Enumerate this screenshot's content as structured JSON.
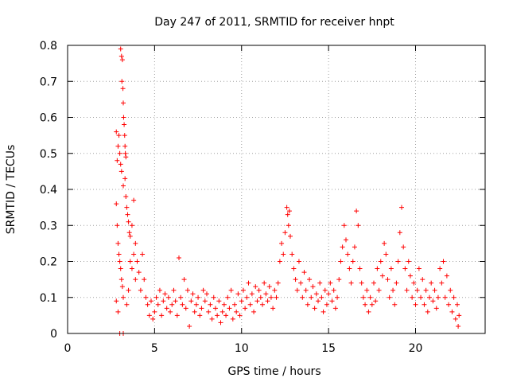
{
  "chart_data": {
    "type": "scatter",
    "title": "Day 247 of 2011, SRMTID for receiver hnpt",
    "xlabel": "GPS time / hours",
    "ylabel": "SRMTID / TECUs",
    "xlim": [
      0,
      24
    ],
    "ylim": [
      0,
      0.8
    ],
    "x_ticks": [
      0,
      5,
      10,
      15,
      20
    ],
    "x_tick_labels": [
      "0",
      "5",
      "10",
      "15",
      "20"
    ],
    "y_ticks": [
      0,
      0.1,
      0.2,
      0.3,
      0.4,
      0.5,
      0.6,
      0.7,
      0.8
    ],
    "y_tick_labels": [
      "0",
      "0.1",
      "0.2",
      "0.3",
      "0.4",
      "0.5",
      "0.6",
      "0.7",
      "0.8"
    ],
    "grid": true,
    "marker": "+",
    "color": "#ff0000",
    "series": [
      {
        "points": [
          [
            2.8,
            0.56
          ],
          [
            2.85,
            0.48
          ],
          [
            2.9,
            0.52
          ],
          [
            2.95,
            0.55
          ],
          [
            3.0,
            0.5
          ],
          [
            3.05,
            0.79
          ],
          [
            3.1,
            0.77
          ],
          [
            3.12,
            0.7
          ],
          [
            3.15,
            0.76
          ],
          [
            3.18,
            0.68
          ],
          [
            3.2,
            0.64
          ],
          [
            3.22,
            0.6
          ],
          [
            3.25,
            0.58
          ],
          [
            3.28,
            0.55
          ],
          [
            3.3,
            0.52
          ],
          [
            3.32,
            0.5
          ],
          [
            3.35,
            0.49
          ],
          [
            3.05,
            0.47
          ],
          [
            3.1,
            0.45
          ],
          [
            3.2,
            0.41
          ],
          [
            3.3,
            0.43
          ],
          [
            3.35,
            0.38
          ],
          [
            3.4,
            0.35
          ],
          [
            3.45,
            0.33
          ],
          [
            3.5,
            0.31
          ],
          [
            3.55,
            0.28
          ],
          [
            3.6,
            0.27
          ],
          [
            3.7,
            0.3
          ],
          [
            3.8,
            0.37
          ],
          [
            3.9,
            0.25
          ],
          [
            2.8,
            0.36
          ],
          [
            2.85,
            0.3
          ],
          [
            2.9,
            0.25
          ],
          [
            2.95,
            0.22
          ],
          [
            3.0,
            0.2
          ],
          [
            3.05,
            0.18
          ],
          [
            3.1,
            0.15
          ],
          [
            3.15,
            0.13
          ],
          [
            3.2,
            0.1
          ],
          [
            2.8,
            0.09
          ],
          [
            2.9,
            0.06
          ],
          [
            3.0,
            0.0
          ],
          [
            3.2,
            0.0
          ],
          [
            3.4,
            0.08
          ],
          [
            3.5,
            0.12
          ],
          [
            3.6,
            0.2
          ],
          [
            3.7,
            0.18
          ],
          [
            3.8,
            0.22
          ],
          [
            3.9,
            0.15
          ],
          [
            4.0,
            0.2
          ],
          [
            4.1,
            0.17
          ],
          [
            4.2,
            0.12
          ],
          [
            4.3,
            0.22
          ],
          [
            4.4,
            0.15
          ],
          [
            4.5,
            0.1
          ],
          [
            4.6,
            0.08
          ],
          [
            4.7,
            0.05
          ],
          [
            4.8,
            0.09
          ],
          [
            4.9,
            0.04
          ],
          [
            5.0,
            0.06
          ],
          [
            5.1,
            0.1
          ],
          [
            5.2,
            0.08
          ],
          [
            5.3,
            0.12
          ],
          [
            5.4,
            0.05
          ],
          [
            5.5,
            0.09
          ],
          [
            5.6,
            0.11
          ],
          [
            5.7,
            0.07
          ],
          [
            5.8,
            0.1
          ],
          [
            5.9,
            0.06
          ],
          [
            6.0,
            0.08
          ],
          [
            6.1,
            0.12
          ],
          [
            6.2,
            0.09
          ],
          [
            6.3,
            0.05
          ],
          [
            6.4,
            0.21
          ],
          [
            6.5,
            0.1
          ],
          [
            6.6,
            0.08
          ],
          [
            6.7,
            0.15
          ],
          [
            6.8,
            0.07
          ],
          [
            6.9,
            0.12
          ],
          [
            7.0,
            0.02
          ],
          [
            7.1,
            0.09
          ],
          [
            7.2,
            0.11
          ],
          [
            7.3,
            0.06
          ],
          [
            7.4,
            0.08
          ],
          [
            7.5,
            0.1
          ],
          [
            7.6,
            0.05
          ],
          [
            7.7,
            0.07
          ],
          [
            7.8,
            0.12
          ],
          [
            7.9,
            0.09
          ],
          [
            8.0,
            0.11
          ],
          [
            8.1,
            0.06
          ],
          [
            8.2,
            0.08
          ],
          [
            8.3,
            0.04
          ],
          [
            8.4,
            0.1
          ],
          [
            8.5,
            0.07
          ],
          [
            8.6,
            0.05
          ],
          [
            8.7,
            0.09
          ],
          [
            8.8,
            0.03
          ],
          [
            8.9,
            0.06
          ],
          [
            9.0,
            0.08
          ],
          [
            9.1,
            0.05
          ],
          [
            9.2,
            0.1
          ],
          [
            9.3,
            0.07
          ],
          [
            9.4,
            0.12
          ],
          [
            9.5,
            0.04
          ],
          [
            9.6,
            0.08
          ],
          [
            9.7,
            0.06
          ],
          [
            9.8,
            0.11
          ],
          [
            9.9,
            0.05
          ],
          [
            10.0,
            0.09
          ],
          [
            10.1,
            0.12
          ],
          [
            10.2,
            0.07
          ],
          [
            10.3,
            0.1
          ],
          [
            10.4,
            0.14
          ],
          [
            10.5,
            0.08
          ],
          [
            10.6,
            0.11
          ],
          [
            10.7,
            0.06
          ],
          [
            10.8,
            0.13
          ],
          [
            10.9,
            0.09
          ],
          [
            11.0,
            0.12
          ],
          [
            11.1,
            0.1
          ],
          [
            11.2,
            0.08
          ],
          [
            11.3,
            0.14
          ],
          [
            11.4,
            0.11
          ],
          [
            11.5,
            0.09
          ],
          [
            11.6,
            0.13
          ],
          [
            11.7,
            0.1
          ],
          [
            11.8,
            0.07
          ],
          [
            11.9,
            0.12
          ],
          [
            12.0,
            0.1
          ],
          [
            12.1,
            0.14
          ],
          [
            12.2,
            0.2
          ],
          [
            12.3,
            0.25
          ],
          [
            12.4,
            0.22
          ],
          [
            12.5,
            0.28
          ],
          [
            12.6,
            0.35
          ],
          [
            12.65,
            0.33
          ],
          [
            12.7,
            0.3
          ],
          [
            12.75,
            0.34
          ],
          [
            12.8,
            0.27
          ],
          [
            12.9,
            0.22
          ],
          [
            13.0,
            0.18
          ],
          [
            13.1,
            0.15
          ],
          [
            13.2,
            0.12
          ],
          [
            13.3,
            0.2
          ],
          [
            13.4,
            0.14
          ],
          [
            13.5,
            0.1
          ],
          [
            13.6,
            0.17
          ],
          [
            13.7,
            0.12
          ],
          [
            13.8,
            0.08
          ],
          [
            13.9,
            0.15
          ],
          [
            14.0,
            0.1
          ],
          [
            14.1,
            0.13
          ],
          [
            14.2,
            0.07
          ],
          [
            14.3,
            0.11
          ],
          [
            14.4,
            0.09
          ],
          [
            14.5,
            0.14
          ],
          [
            14.6,
            0.1
          ],
          [
            14.7,
            0.06
          ],
          [
            14.8,
            0.12
          ],
          [
            14.9,
            0.08
          ],
          [
            15.0,
            0.11
          ],
          [
            15.1,
            0.14
          ],
          [
            15.2,
            0.09
          ],
          [
            15.3,
            0.12
          ],
          [
            15.4,
            0.07
          ],
          [
            15.5,
            0.1
          ],
          [
            15.6,
            0.15
          ],
          [
            15.7,
            0.2
          ],
          [
            15.8,
            0.24
          ],
          [
            15.9,
            0.3
          ],
          [
            16.0,
            0.26
          ],
          [
            16.1,
            0.22
          ],
          [
            16.2,
            0.18
          ],
          [
            16.3,
            0.14
          ],
          [
            16.4,
            0.2
          ],
          [
            16.5,
            0.24
          ],
          [
            16.6,
            0.34
          ],
          [
            16.7,
            0.3
          ],
          [
            16.8,
            0.18
          ],
          [
            16.9,
            0.14
          ],
          [
            17.0,
            0.1
          ],
          [
            17.1,
            0.08
          ],
          [
            17.2,
            0.12
          ],
          [
            17.3,
            0.06
          ],
          [
            17.4,
            0.1
          ],
          [
            17.5,
            0.08
          ],
          [
            17.6,
            0.14
          ],
          [
            17.7,
            0.09
          ],
          [
            17.8,
            0.18
          ],
          [
            17.9,
            0.12
          ],
          [
            18.0,
            0.2
          ],
          [
            18.1,
            0.16
          ],
          [
            18.2,
            0.25
          ],
          [
            18.3,
            0.22
          ],
          [
            18.4,
            0.15
          ],
          [
            18.5,
            0.1
          ],
          [
            18.6,
            0.18
          ],
          [
            18.7,
            0.12
          ],
          [
            18.8,
            0.08
          ],
          [
            18.9,
            0.14
          ],
          [
            19.0,
            0.2
          ],
          [
            19.1,
            0.28
          ],
          [
            19.2,
            0.35
          ],
          [
            19.3,
            0.24
          ],
          [
            19.4,
            0.18
          ],
          [
            19.5,
            0.12
          ],
          [
            19.6,
            0.2
          ],
          [
            19.7,
            0.16
          ],
          [
            19.8,
            0.1
          ],
          [
            19.9,
            0.14
          ],
          [
            20.0,
            0.08
          ],
          [
            20.1,
            0.12
          ],
          [
            20.2,
            0.18
          ],
          [
            20.3,
            0.1
          ],
          [
            20.4,
            0.15
          ],
          [
            20.5,
            0.08
          ],
          [
            20.6,
            0.12
          ],
          [
            20.7,
            0.06
          ],
          [
            20.8,
            0.1
          ],
          [
            20.9,
            0.14
          ],
          [
            21.0,
            0.09
          ],
          [
            21.1,
            0.12
          ],
          [
            21.2,
            0.07
          ],
          [
            21.3,
            0.1
          ],
          [
            21.4,
            0.18
          ],
          [
            21.5,
            0.14
          ],
          [
            21.6,
            0.2
          ],
          [
            21.7,
            0.1
          ],
          [
            21.8,
            0.16
          ],
          [
            21.9,
            0.08
          ],
          [
            22.0,
            0.12
          ],
          [
            22.1,
            0.06
          ],
          [
            22.2,
            0.1
          ],
          [
            22.3,
            0.04
          ],
          [
            22.4,
            0.08
          ],
          [
            22.45,
            0.02
          ],
          [
            22.5,
            0.05
          ]
        ]
      }
    ]
  }
}
